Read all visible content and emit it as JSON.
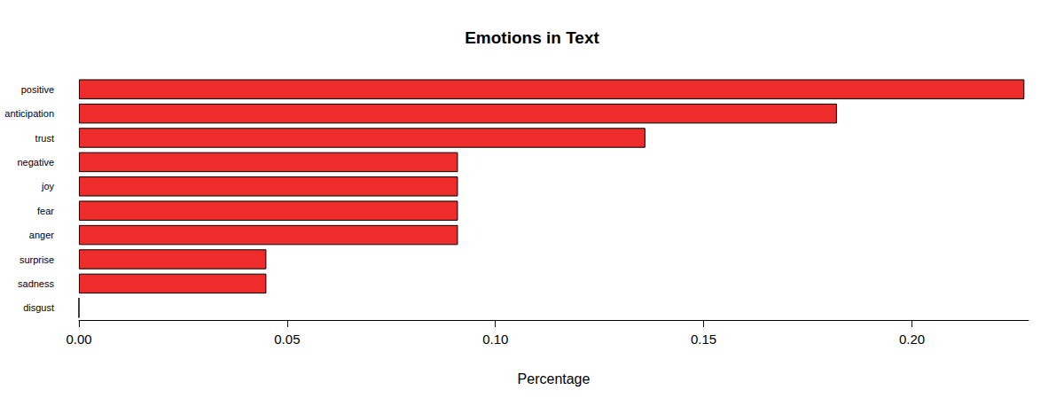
{
  "chart_data": {
    "type": "bar",
    "orientation": "horizontal",
    "title": "Emotions in Text",
    "x_label": "Percentage",
    "categories": [
      "positive",
      "anticipation",
      "trust",
      "negative",
      "joy",
      "fear",
      "anger",
      "surprise",
      "sadness",
      "disgust"
    ],
    "values": [
      0.227,
      0.182,
      0.136,
      0.091,
      0.091,
      0.091,
      0.091,
      0.045,
      0.045,
      0
    ],
    "color": "#ee2c2c",
    "xlim": [
      0,
      0.228
    ],
    "xticks": [
      {
        "value": 0,
        "label": "0.00"
      },
      {
        "value": 0.05,
        "label": "0.05"
      },
      {
        "value": 0.1,
        "label": "0.10"
      },
      {
        "value": 0.15,
        "label": "0.15"
      },
      {
        "value": 0.2,
        "label": "0.20"
      }
    ],
    "grid": false
  }
}
